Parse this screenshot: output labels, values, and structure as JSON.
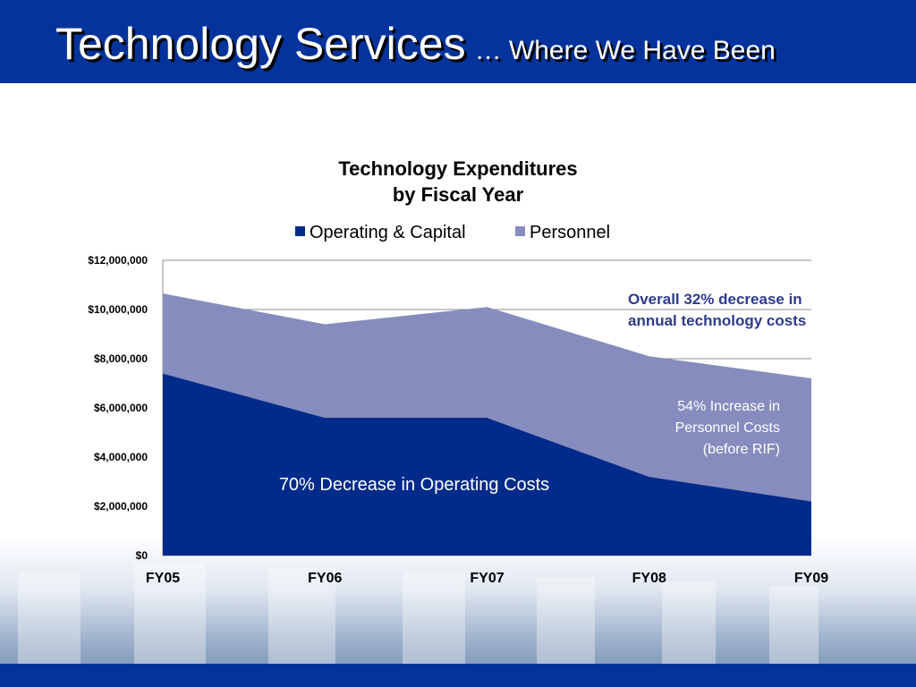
{
  "slide": {
    "title": "Technology Services",
    "subtitle": "… Where We Have Been"
  },
  "chart_data": {
    "type": "stacked_area",
    "title": [
      "Technology Expenditures",
      "by Fiscal Year"
    ],
    "categories": [
      "FY05",
      "FY06",
      "FY07",
      "FY08",
      "FY09"
    ],
    "series": [
      {
        "name": "Operating & Capital",
        "color": "#002b8a",
        "values": [
          7400000,
          5600000,
          5600000,
          3200000,
          2200000
        ]
      },
      {
        "name": "Personnel",
        "color": "#878cbf",
        "values": [
          3250000,
          3800000,
          4500000,
          4900000,
          5000000
        ]
      }
    ],
    "ylim": [
      0,
      12000000
    ],
    "yticks": [
      {
        "value": 0,
        "label": "$0"
      },
      {
        "value": 2000000,
        "label": "$2,000,000"
      },
      {
        "value": 4000000,
        "label": "$4,000,000"
      },
      {
        "value": 6000000,
        "label": "$6,000,000"
      },
      {
        "value": 8000000,
        "label": "$8,000,000"
      },
      {
        "value": 10000000,
        "label": "$10,000,000"
      },
      {
        "value": 12000000,
        "label": "$12,000,000"
      }
    ],
    "grid": true,
    "legend": "top",
    "annotations": [
      [
        "Overall 32% decrease in",
        "annual technology costs"
      ],
      [
        "54% Increase in",
        "Personnel Costs",
        "(before RIF)"
      ],
      [
        "70% Decrease in Operating Costs"
      ]
    ]
  }
}
